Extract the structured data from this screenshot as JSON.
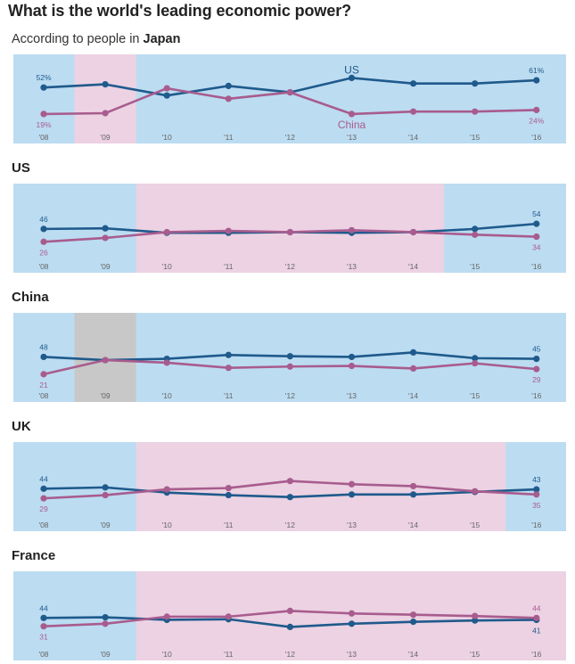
{
  "title": "What is the world's leading economic power?",
  "subtitle_prefix": "According to people in",
  "subtitle_country": "Japan",
  "colors": {
    "us": "#1f5a8c",
    "china": "#a85c8e",
    "us_band": "#bcdcf1",
    "china_band": "#ecd2e3",
    "nodata_band": "#c8c8c8"
  },
  "series_names": {
    "us": "US",
    "china": "China"
  },
  "chart_data": [
    {
      "type": "line",
      "title": "",
      "categories": [
        "'08",
        "'09",
        "'10",
        "'11",
        "'12",
        "'13",
        "'14",
        "'15",
        "'16"
      ],
      "ylim": [
        0,
        80
      ],
      "series": [
        {
          "name": "US",
          "key": "us",
          "values": [
            52,
            56,
            42,
            54,
            46,
            64,
            57,
            57,
            61
          ],
          "unit": "%"
        },
        {
          "name": "China",
          "key": "china",
          "values": [
            19,
            20,
            51,
            38,
            46,
            19,
            22,
            22,
            24
          ],
          "unit": "%"
        }
      ],
      "bands": [
        "us",
        "china",
        "us",
        "us",
        "us",
        "us",
        "us",
        "us",
        "us"
      ],
      "series_labels": true
    },
    {
      "type": "line",
      "title": "US",
      "categories": [
        "'08",
        "'09",
        "'10",
        "'11",
        "'12",
        "'13",
        "'14",
        "'15",
        "'16"
      ],
      "ylim": [
        0,
        100
      ],
      "series": [
        {
          "name": "US",
          "key": "us",
          "values": [
            46,
            47,
            40,
            40,
            41,
            40,
            41,
            46,
            54
          ],
          "unit": ""
        },
        {
          "name": "China",
          "key": "china",
          "values": [
            26,
            32,
            41,
            43,
            41,
            44,
            41,
            37,
            34
          ],
          "unit": ""
        }
      ],
      "bands": [
        "us",
        "us",
        "china",
        "china",
        "china",
        "china",
        "china",
        "us",
        "us"
      ],
      "series_labels": false
    },
    {
      "type": "line",
      "title": "China",
      "categories": [
        "'08",
        "'09",
        "'10",
        "'11",
        "'12",
        "'13",
        "'14",
        "'15",
        "'16"
      ],
      "ylim": [
        0,
        100
      ],
      "series": [
        {
          "name": "US",
          "key": "us",
          "values": [
            48,
            43,
            45,
            51,
            49,
            48,
            55,
            46,
            45
          ],
          "unit": ""
        },
        {
          "name": "China",
          "key": "china",
          "values": [
            21,
            43,
            39,
            31,
            33,
            34,
            30,
            38,
            29
          ],
          "unit": ""
        }
      ],
      "bands": [
        "us",
        "none",
        "us",
        "us",
        "us",
        "us",
        "us",
        "us",
        "us"
      ],
      "series_labels": false
    },
    {
      "type": "line",
      "title": "UK",
      "categories": [
        "'08",
        "'09",
        "'10",
        "'11",
        "'12",
        "'13",
        "'14",
        "'15",
        "'16"
      ],
      "ylim": [
        0,
        100
      ],
      "series": [
        {
          "name": "US",
          "key": "us",
          "values": [
            44,
            46,
            38,
            34,
            31,
            35,
            35,
            39,
            43
          ],
          "unit": ""
        },
        {
          "name": "China",
          "key": "china",
          "values": [
            29,
            34,
            43,
            45,
            56,
            51,
            48,
            40,
            35
          ],
          "unit": ""
        }
      ],
      "bands": [
        "us",
        "us",
        "china",
        "china",
        "china",
        "china",
        "china",
        "china",
        "us"
      ],
      "series_labels": false
    },
    {
      "type": "line",
      "title": "France",
      "categories": [
        "'08",
        "'09",
        "'10",
        "'11",
        "'12",
        "'13",
        "'14",
        "'15",
        "'16"
      ],
      "ylim": [
        0,
        100
      ],
      "series": [
        {
          "name": "US",
          "key": "us",
          "values": [
            44,
            45,
            41,
            42,
            30,
            35,
            38,
            40,
            41
          ],
          "unit": ""
        },
        {
          "name": "China",
          "key": "china",
          "values": [
            31,
            35,
            46,
            46,
            55,
            51,
            49,
            47,
            44
          ],
          "unit": ""
        }
      ],
      "bands": [
        "us",
        "us",
        "china",
        "china",
        "china",
        "china",
        "china",
        "china",
        "china"
      ],
      "series_labels": false
    }
  ]
}
